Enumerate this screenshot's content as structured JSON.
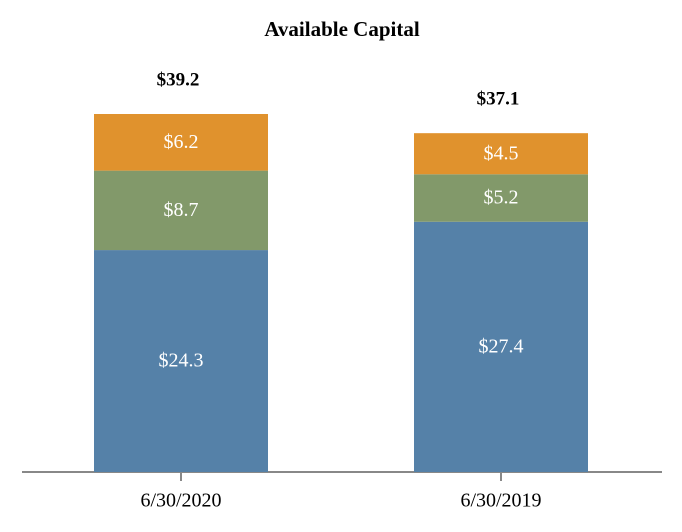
{
  "chart_data": {
    "type": "stacked-bar",
    "title": "Available Capital",
    "categories": [
      "6/30/2020",
      "6/30/2019"
    ],
    "series": [
      {
        "color": "#5581a8",
        "values": [
          24.3,
          27.4
        ],
        "value_labels": [
          "$24.3",
          "$27.4"
        ]
      },
      {
        "color": "#82996a",
        "values": [
          8.7,
          5.2
        ],
        "value_labels": [
          "$8.7",
          "$5.2"
        ]
      },
      {
        "color": "#e0922d",
        "values": [
          6.2,
          4.5
        ],
        "value_labels": [
          "$6.2",
          "$4.5"
        ]
      }
    ],
    "totals": [
      39.2,
      37.1
    ],
    "total_labels": [
      "$39.2",
      "$37.1"
    ]
  }
}
